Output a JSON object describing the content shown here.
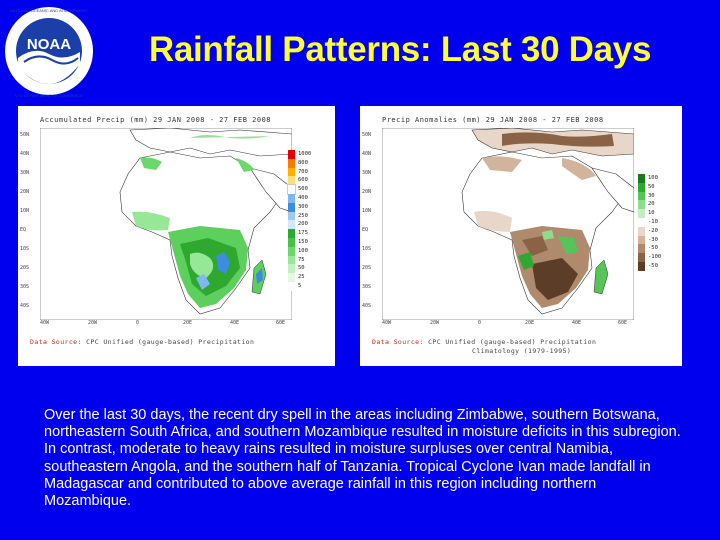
{
  "title": "Rainfall Patterns: Last 30 Days",
  "logo": {
    "name": "noaa-logo",
    "text": "NOAA",
    "ring_text": "NATIONAL OCEANIC AND ATMOSPHERIC ADMINISTRATION · U.S. DEPARTMENT OF COMMERCE"
  },
  "maps": [
    {
      "title": "Accumulated Precip (mm)  29 JAN 2008 - 27 FEB 2008",
      "y_ticks": [
        "50N",
        "40N",
        "30N",
        "20N",
        "10N",
        "EQ",
        "10S",
        "20S",
        "30S",
        "40S"
      ],
      "x_ticks": [
        "40W",
        "20W",
        "0",
        "20E",
        "40E",
        "60E"
      ],
      "legend": [
        {
          "label": "1000",
          "color": "#e60000"
        },
        {
          "label": "800",
          "color": "#ff7800"
        },
        {
          "label": "700",
          "color": "#ffb000"
        },
        {
          "label": "600",
          "color": "#ffe070"
        },
        {
          "label": "500",
          "color": "#ffffff"
        },
        {
          "label": "400",
          "color": "#7fb8f0"
        },
        {
          "label": "300",
          "color": "#3c8ce0"
        },
        {
          "label": "250",
          "color": "#a0c8f0"
        },
        {
          "label": "200",
          "color": "#d0e8ff"
        },
        {
          "label": "175",
          "color": "#2ea82e"
        },
        {
          "label": "150",
          "color": "#46c046"
        },
        {
          "label": "100",
          "color": "#6ad86a"
        },
        {
          "label": "75",
          "color": "#96e896"
        },
        {
          "label": "50",
          "color": "#c0f0c0"
        },
        {
          "label": "25",
          "color": "#e4f8e4"
        },
        {
          "label": "5",
          "color": "#ffffff"
        }
      ],
      "source_key": "Data Source:",
      "source": "CPC Unified (gauge-based) Precipitation",
      "source_line2": ""
    },
    {
      "title": "Precip Anomalies (mm)  29 JAN 2008 - 27 FEB 2008",
      "y_ticks": [
        "50N",
        "40N",
        "30N",
        "20N",
        "10N",
        "EQ",
        "10S",
        "20S",
        "30S",
        "40S"
      ],
      "x_ticks": [
        "40W",
        "20W",
        "0",
        "20E",
        "40E",
        "60E"
      ],
      "legend": [
        {
          "label": "100",
          "color": "#1a7a1a"
        },
        {
          "label": "50",
          "color": "#2ea82e"
        },
        {
          "label": "30",
          "color": "#56c456"
        },
        {
          "label": "20",
          "color": "#8edc8e"
        },
        {
          "label": "10",
          "color": "#c2eec2"
        },
        {
          "label": "-10",
          "color": "#ffffff"
        },
        {
          "label": "-20",
          "color": "#e8d6c8"
        },
        {
          "label": "-30",
          "color": "#d2b49c"
        },
        {
          "label": "-50",
          "color": "#b08a6c"
        },
        {
          "label": "-100",
          "color": "#8a6246"
        },
        {
          "label": "-50",
          "color": "#5c3e28"
        }
      ],
      "source_key": "Data Source:",
      "source": "CPC Unified (gauge-based) Precipitation",
      "source_line2": "Climatology (1979-1995)"
    }
  ],
  "description": "Over the last 30 days, the recent dry spell in the areas including Zimbabwe, southern Botswana, northeastern South Africa, and southern Mozambique resulted in moisture deficits in this subregion.  In contrast, moderate to heavy rains resulted in moisture surpluses over central Namibia, southeastern Angola, and the southern half of Tanzania.  Tropical Cyclone Ivan made landfall in Madagascar and contributed to above average rainfall in this region including northern Mozambique.",
  "colors": {
    "background": "#0000ee",
    "title": "#ffff33",
    "text": "#ffffff"
  }
}
